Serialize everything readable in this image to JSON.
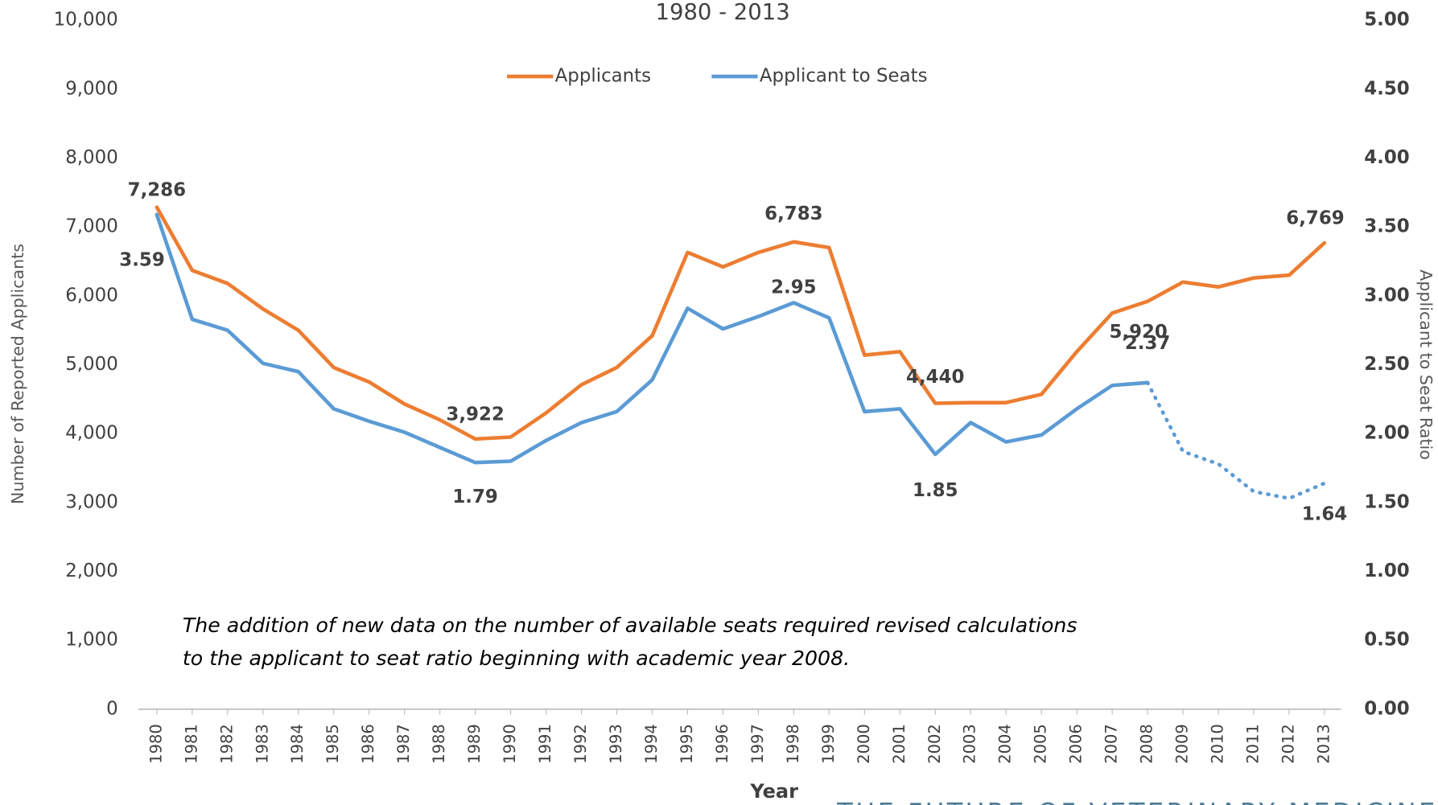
{
  "chart_data": {
    "type": "line",
    "subtitle": "1980 - 2013",
    "categories": [
      "1980",
      "1981",
      "1982",
      "1983",
      "1984",
      "1985",
      "1986",
      "1987",
      "1988",
      "1989",
      "1990",
      "1991",
      "1992",
      "1993",
      "1994",
      "1995",
      "1996",
      "1997",
      "1998",
      "1999",
      "2000",
      "2001",
      "2002",
      "2003",
      "2004",
      "2005",
      "2006",
      "2007",
      "2008",
      "2009",
      "2010",
      "2011",
      "2012",
      "2013"
    ],
    "series": [
      {
        "name": "Applicants",
        "color": "#ed7d31",
        "axis": "y",
        "values": [
          7286,
          6370,
          6180,
          5810,
          5500,
          4960,
          4750,
          4430,
          4200,
          3922,
          3950,
          4300,
          4710,
          4960,
          5420,
          6630,
          6420,
          6630,
          6783,
          6700,
          5140,
          5190,
          4440,
          4450,
          4450,
          4570,
          5190,
          5750,
          5920,
          6200,
          6130,
          6260,
          6300,
          6769
        ],
        "value_labels": [
          "7,286",
          null,
          null,
          null,
          null,
          null,
          null,
          null,
          null,
          "3,922",
          null,
          null,
          null,
          null,
          null,
          null,
          null,
          null,
          "6,783",
          null,
          null,
          null,
          "4,440",
          null,
          null,
          null,
          null,
          null,
          "5,920",
          null,
          null,
          null,
          null,
          "6,769"
        ]
      },
      {
        "name": "Applicant to Seats",
        "color": "#5b9bd5",
        "axis": "y2",
        "dotted_from": "2008",
        "values": [
          3.59,
          2.83,
          2.75,
          2.51,
          2.45,
          2.18,
          2.09,
          2.01,
          1.9,
          1.79,
          1.8,
          1.95,
          2.08,
          2.16,
          2.39,
          2.91,
          2.76,
          2.85,
          2.95,
          2.84,
          2.16,
          2.18,
          1.85,
          2.08,
          1.94,
          1.99,
          2.18,
          2.35,
          2.37,
          1.87,
          1.78,
          1.58,
          1.53,
          1.64
        ],
        "value_labels": [
          "3.59",
          null,
          null,
          null,
          null,
          null,
          null,
          null,
          null,
          "1.79",
          null,
          null,
          null,
          null,
          null,
          null,
          null,
          null,
          "2.95",
          null,
          null,
          null,
          "1.85",
          null,
          null,
          null,
          null,
          null,
          "2.37",
          null,
          null,
          null,
          null,
          "1.64"
        ]
      }
    ],
    "ylabel": "Number of Reported Applicants",
    "y2label": "Applicant to Seat Ratio",
    "xlabel": "Year",
    "ylim": [
      0,
      10000
    ],
    "yticks": [
      0,
      {
        "value": 1000,
        "label": "1,000"
      },
      {
        "value": 2000,
        "label": "2,000"
      },
      {
        "value": 3000,
        "label": "3,000"
      },
      {
        "value": 4000,
        "label": "4,000"
      },
      {
        "value": 5000,
        "label": "5,000"
      },
      {
        "value": 6000,
        "label": "6,000"
      },
      {
        "value": 7000,
        "label": "7,000"
      },
      {
        "value": 8000,
        "label": "8,000"
      },
      {
        "value": 9000,
        "label": "9,000"
      },
      {
        "value": 10000,
        "label": "10,000"
      }
    ],
    "y2lim": [
      0,
      5
    ],
    "y2ticks": [
      {
        "value": 0,
        "label": "0.00"
      },
      {
        "value": 0.5,
        "label": "0.50"
      },
      {
        "value": 1,
        "label": "1.00"
      },
      {
        "value": 1.5,
        "label": "1.50"
      },
      {
        "value": 2,
        "label": "2.00"
      },
      {
        "value": 2.5,
        "label": "2.50"
      },
      {
        "value": 3,
        "label": "3.00"
      },
      {
        "value": 3.5,
        "label": "3.50"
      },
      {
        "value": 4,
        "label": "4.00"
      },
      {
        "value": 4.5,
        "label": "4.50"
      },
      {
        "value": 5,
        "label": "5.00"
      }
    ],
    "legend": "top",
    "annotation": [
      "The addition of new data on the number of available seats required revised calculations",
      "to the applicant to seat ratio beginning with academic year 2008."
    ],
    "footer": "THE FUTURE OF VETERINARY MEDICINE"
  }
}
